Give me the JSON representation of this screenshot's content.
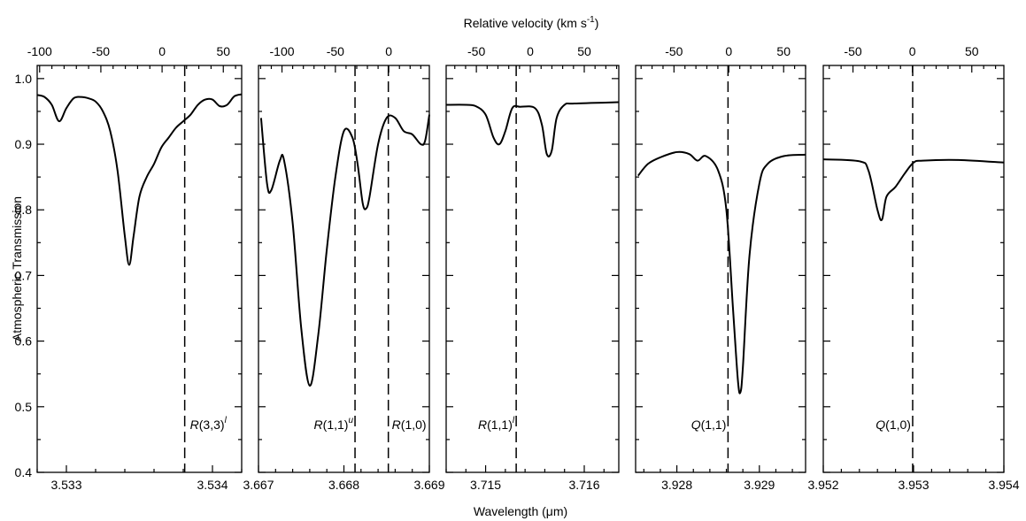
{
  "chart_data": {
    "type": "line",
    "xlabel": "Wavelength (μm)",
    "x2label": "Relative velocity (km s⁻¹)",
    "ylabel": "Atmospheric Transmission",
    "ylim": [
      0.4,
      1.02
    ],
    "y_ticks": [
      "0.4",
      "0.5",
      "0.6",
      "0.7",
      "0.8",
      "0.9",
      "1.0"
    ],
    "grid": false,
    "panels": [
      {
        "xlim": [
          3.5328,
          3.5342
        ],
        "x_ticks": [
          "3.533",
          "3.534"
        ],
        "vlim": [
          -102,
          65
        ],
        "v_ticks": [
          "-100",
          "-50",
          "0",
          "50"
        ],
        "lines": [
          {
            "label": "R(3,3)^l",
            "wavelength": 3.53381
          }
        ],
        "points": [
          [
            3.5328,
            0.975
          ],
          [
            3.53285,
            0.972
          ],
          [
            3.5329,
            0.96
          ],
          [
            3.53295,
            0.935
          ],
          [
            3.533,
            0.955
          ],
          [
            3.53305,
            0.97
          ],
          [
            3.5331,
            0.972
          ],
          [
            3.53315,
            0.97
          ],
          [
            3.5332,
            0.965
          ],
          [
            3.53325,
            0.95
          ],
          [
            3.5333,
            0.92
          ],
          [
            3.53335,
            0.86
          ],
          [
            3.5334,
            0.76
          ],
          [
            3.53343,
            0.716
          ],
          [
            3.53346,
            0.76
          ],
          [
            3.5335,
            0.82
          ],
          [
            3.53355,
            0.85
          ],
          [
            3.5336,
            0.87
          ],
          [
            3.53365,
            0.895
          ],
          [
            3.5337,
            0.91
          ],
          [
            3.53375,
            0.925
          ],
          [
            3.5338,
            0.935
          ],
          [
            3.53385,
            0.945
          ],
          [
            3.5339,
            0.96
          ],
          [
            3.53395,
            0.968
          ],
          [
            3.534,
            0.968
          ],
          [
            3.53405,
            0.958
          ],
          [
            3.5341,
            0.96
          ],
          [
            3.53415,
            0.973
          ],
          [
            3.5342,
            0.976
          ]
        ]
      },
      {
        "xlim": [
          3.667,
          3.669
        ],
        "x_ticks": [
          "3.667",
          "3.668",
          "3.669"
        ],
        "vlim": [
          -122,
          38
        ],
        "v_ticks": [
          "-100",
          "-50",
          "0"
        ],
        "lines": [
          {
            "label": "R(1,1)^u",
            "wavelength": 3.66813
          },
          {
            "label": "R(1,0)",
            "wavelength": 3.66852
          }
        ],
        "points": [
          [
            3.66703,
            0.94
          ],
          [
            3.6671,
            0.84
          ],
          [
            3.66715,
            0.83
          ],
          [
            3.66725,
            0.875
          ],
          [
            3.6673,
            0.875
          ],
          [
            3.6674,
            0.78
          ],
          [
            3.6675,
            0.62
          ],
          [
            3.6676,
            0.532
          ],
          [
            3.6677,
            0.61
          ],
          [
            3.6678,
            0.74
          ],
          [
            3.6679,
            0.85
          ],
          [
            3.668,
            0.92
          ],
          [
            3.6681,
            0.91
          ],
          [
            3.66816,
            0.87
          ],
          [
            3.66822,
            0.81
          ],
          [
            3.66826,
            0.802
          ],
          [
            3.6683,
            0.82
          ],
          [
            3.6684,
            0.9
          ],
          [
            3.6685,
            0.94
          ],
          [
            3.6686,
            0.94
          ],
          [
            3.6687,
            0.92
          ],
          [
            3.6688,
            0.915
          ],
          [
            3.6689,
            0.9
          ],
          [
            3.66895,
            0.905
          ],
          [
            3.669,
            0.945
          ]
        ]
      },
      {
        "xlim": [
          3.7146,
          3.71635
        ],
        "x_ticks": [
          "3.715",
          "3.716"
        ],
        "vlim": [
          -78,
          82
        ],
        "v_ticks": [
          "-50",
          "0",
          "50"
        ],
        "lines": [
          {
            "label": "R(1,1)^l",
            "wavelength": 3.71531
          }
        ],
        "points": [
          [
            3.7146,
            0.96
          ],
          [
            3.7148,
            0.96
          ],
          [
            3.7149,
            0.958
          ],
          [
            3.715,
            0.945
          ],
          [
            3.71508,
            0.91
          ],
          [
            3.71514,
            0.9
          ],
          [
            3.7152,
            0.92
          ],
          [
            3.71527,
            0.955
          ],
          [
            3.71535,
            0.957
          ],
          [
            3.7155,
            0.955
          ],
          [
            3.71557,
            0.93
          ],
          [
            3.71562,
            0.885
          ],
          [
            3.71567,
            0.89
          ],
          [
            3.71572,
            0.94
          ],
          [
            3.7158,
            0.96
          ],
          [
            3.7159,
            0.962
          ],
          [
            3.71635,
            0.964
          ]
        ]
      },
      {
        "xlim": [
          3.9275,
          3.92956
        ],
        "x_ticks": [
          "3.928",
          "3.929"
        ],
        "vlim": [
          -85,
          70
        ],
        "v_ticks": [
          "-50",
          "0",
          "50"
        ],
        "lines": [
          {
            "label": "Q(1,1)",
            "wavelength": 3.92862
          }
        ],
        "points": [
          [
            3.92753,
            0.852
          ],
          [
            3.92765,
            0.87
          ],
          [
            3.9278,
            0.88
          ],
          [
            3.928,
            0.888
          ],
          [
            3.92815,
            0.885
          ],
          [
            3.92825,
            0.875
          ],
          [
            3.92835,
            0.882
          ],
          [
            3.9285,
            0.86
          ],
          [
            3.9286,
            0.8
          ],
          [
            3.92868,
            0.65
          ],
          [
            3.92874,
            0.54
          ],
          [
            3.92877,
            0.522
          ],
          [
            3.9288,
            0.56
          ],
          [
            3.92888,
            0.73
          ],
          [
            3.929,
            0.84
          ],
          [
            3.9291,
            0.87
          ],
          [
            3.9293,
            0.882
          ],
          [
            3.92956,
            0.884
          ]
        ]
      },
      {
        "xlim": [
          3.952,
          3.954
        ],
        "x_ticks": [
          "3.952",
          "3.953",
          "3.954"
        ],
        "vlim": [
          -75,
          77
        ],
        "v_ticks": [
          "-50",
          "0",
          "50"
        ],
        "lines": [
          {
            "label": "Q(1,0)",
            "wavelength": 3.95299
          }
        ],
        "points": [
          [
            3.952,
            0.877
          ],
          [
            3.9524,
            0.874
          ],
          [
            3.9525,
            0.86
          ],
          [
            3.9526,
            0.8
          ],
          [
            3.95265,
            0.785
          ],
          [
            3.9527,
            0.82
          ],
          [
            3.9528,
            0.835
          ],
          [
            3.9529,
            0.855
          ],
          [
            3.953,
            0.872
          ],
          [
            3.9531,
            0.875
          ],
          [
            3.9535,
            0.876
          ],
          [
            3.954,
            0.872
          ]
        ]
      }
    ]
  }
}
